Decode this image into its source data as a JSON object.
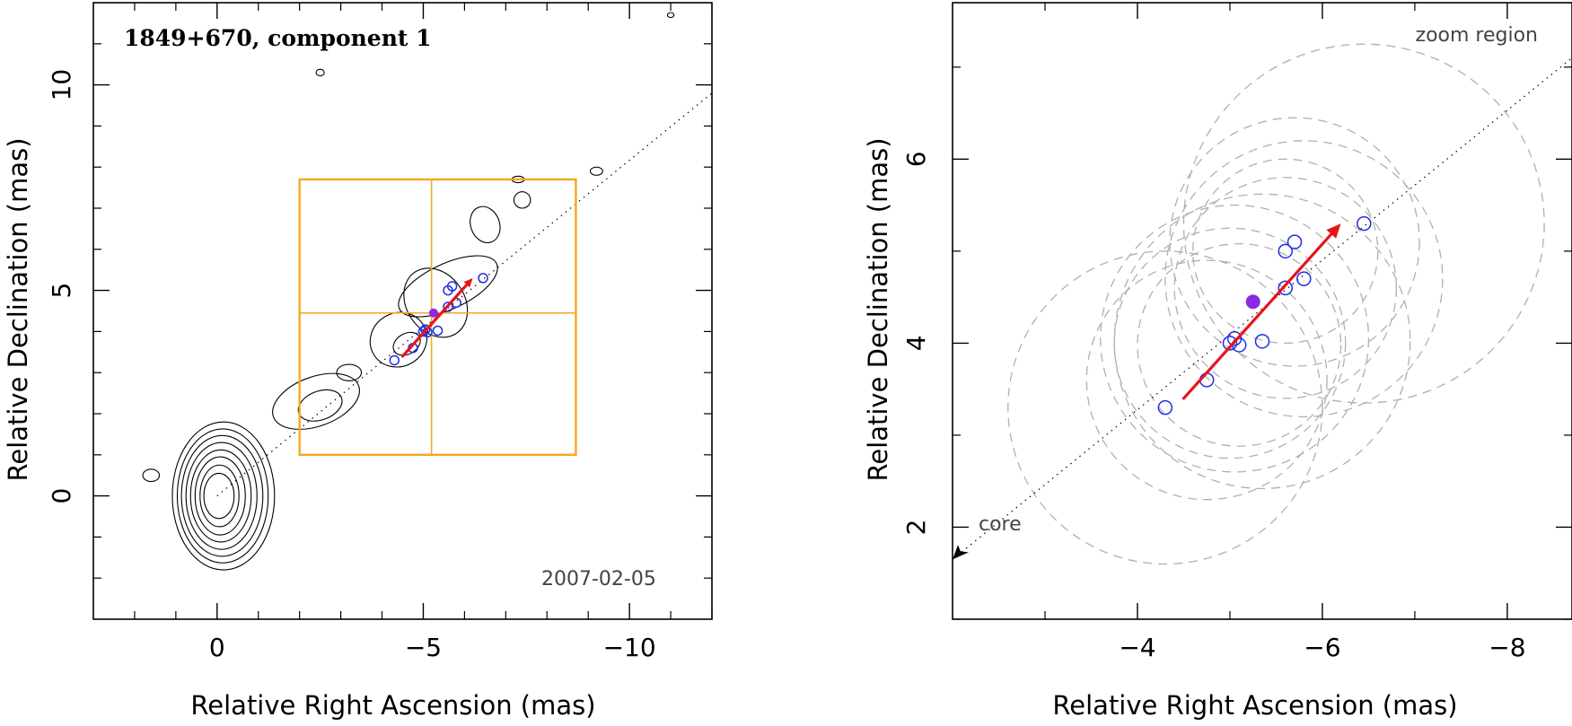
{
  "chart_data": [
    {
      "type": "scatter",
      "name": "left-panel",
      "title": "1849+670, component 1",
      "date": "2007-02-05",
      "xlabel": "Relative Right Ascension (mas)",
      "ylabel": "Relative Declination (mas)",
      "xlim": [
        3,
        -12
      ],
      "ylim": [
        -3,
        12
      ],
      "xticks": [
        0,
        -5,
        -10
      ],
      "xtick_labels": [
        "0",
        "−5",
        "−10"
      ],
      "yticks": [
        0,
        5,
        10
      ],
      "ytick_labels": [
        "0",
        "5",
        "10"
      ],
      "zoom_box": {
        "x": [
          -2,
          -8.7
        ],
        "y": [
          1,
          7.7
        ],
        "cross_x": -5.2,
        "cross_y": 4.45
      },
      "core": [
        0,
        0
      ],
      "contour_radii": [
        [
          0.35,
          0.55
        ],
        [
          0.45,
          0.75
        ],
        [
          0.58,
          0.95
        ],
        [
          0.7,
          1.12
        ],
        [
          0.82,
          1.3
        ],
        [
          0.94,
          1.47
        ],
        [
          1.05,
          1.63
        ],
        [
          1.18,
          1.8
        ]
      ],
      "contour_blobs": [
        {
          "cx": -2.4,
          "cy": 2.3,
          "rx": 1.1,
          "ry": 0.6,
          "rot": -20
        },
        {
          "cx": -2.5,
          "cy": 2.2,
          "rx": 0.55,
          "ry": 0.35,
          "rot": -20
        },
        {
          "cx": -3.2,
          "cy": 3.0,
          "rx": 0.3,
          "ry": 0.2,
          "rot": 0
        },
        {
          "cx": -4.4,
          "cy": 3.8,
          "rx": 0.7,
          "ry": 0.65,
          "rot": -30
        },
        {
          "cx": -4.6,
          "cy": 3.7,
          "rx": 0.35,
          "ry": 0.25,
          "rot": -30
        },
        {
          "cx": -5.3,
          "cy": 4.7,
          "rx": 0.7,
          "ry": 0.9,
          "rot": -35
        },
        {
          "cx": -5.6,
          "cy": 5.1,
          "rx": 1.3,
          "ry": 0.55,
          "rot": -25
        },
        {
          "cx": -6.5,
          "cy": 6.6,
          "rx": 0.35,
          "ry": 0.45,
          "rot": -20
        },
        {
          "cx": -7.4,
          "cy": 7.2,
          "rx": 0.2,
          "ry": 0.2,
          "rot": 0
        },
        {
          "cx": -2.5,
          "cy": 10.3,
          "rx": 0.1,
          "ry": 0.08,
          "rot": 0
        },
        {
          "cx": -11.0,
          "cy": 11.7,
          "rx": 0.08,
          "ry": 0.06,
          "rot": 0
        },
        {
          "cx": -9.2,
          "cy": 7.9,
          "rx": 0.15,
          "ry": 0.1,
          "rot": 0
        },
        {
          "cx": -7.3,
          "cy": 7.7,
          "rx": 0.15,
          "ry": 0.08,
          "rot": 0
        },
        {
          "cx": 1.6,
          "cy": 0.5,
          "rx": 0.2,
          "ry": 0.15,
          "rot": 0
        }
      ],
      "component_points": [
        [
          -4.3,
          3.3
        ],
        [
          -4.75,
          3.6
        ],
        [
          -5.0,
          4.0
        ],
        [
          -5.05,
          4.05
        ],
        [
          -5.1,
          3.98
        ],
        [
          -5.35,
          4.02
        ],
        [
          -5.6,
          4.6
        ],
        [
          -5.6,
          5.0
        ],
        [
          -5.7,
          5.1
        ],
        [
          -5.8,
          4.7
        ],
        [
          -6.45,
          5.3
        ]
      ],
      "mean_position": [
        -5.25,
        4.45
      ],
      "vector": {
        "from": [
          -4.5,
          3.4
        ],
        "to": [
          -6.2,
          5.3
        ]
      },
      "jet_axis": {
        "from": [
          0,
          0
        ],
        "to": [
          -12,
          9.8
        ]
      }
    },
    {
      "type": "scatter",
      "name": "right-panel",
      "title": "zoom region",
      "core_label": "core",
      "xlabel": "Relative Right Ascension (mas)",
      "ylabel": "Relative Declination (mas)",
      "xlim": [
        -2,
        -8.7
      ],
      "ylim": [
        1,
        7.7
      ],
      "xticks": [
        -4,
        -6,
        -8
      ],
      "xtick_labels": [
        "−4",
        "−6",
        "−8"
      ],
      "yticks": [
        2,
        4,
        6
      ],
      "ytick_labels": [
        "2",
        "4",
        "6"
      ],
      "component_points": [
        [
          -4.3,
          3.3
        ],
        [
          -4.75,
          3.6
        ],
        [
          -5.0,
          4.0
        ],
        [
          -5.05,
          4.05
        ],
        [
          -5.1,
          3.98
        ],
        [
          -5.35,
          4.02
        ],
        [
          -5.6,
          4.6
        ],
        [
          -5.6,
          5.0
        ],
        [
          -5.7,
          5.1
        ],
        [
          -5.8,
          4.7
        ],
        [
          -6.45,
          5.3
        ]
      ],
      "mean_position": [
        -5.25,
        4.45
      ],
      "vector": {
        "from": [
          -4.5,
          3.4
        ],
        "to": [
          -6.2,
          5.3
        ]
      },
      "jet_axis": {
        "from": [
          -2.0,
          1.65
        ],
        "to": [
          -8.7,
          7.1
        ]
      },
      "core_arrow_tip": [
        -2.0,
        1.65
      ],
      "error_circles": [
        {
          "cx": -4.3,
          "cy": 3.3,
          "r": 1.7
        },
        {
          "cx": -4.75,
          "cy": 3.6,
          "r": 1.3
        },
        {
          "cx": -5.0,
          "cy": 4.0,
          "r": 1.25
        },
        {
          "cx": -5.05,
          "cy": 4.05,
          "r": 1.45
        },
        {
          "cx": -5.1,
          "cy": 3.98,
          "r": 1.1
        },
        {
          "cx": -5.35,
          "cy": 4.02,
          "r": 1.6
        },
        {
          "cx": -5.6,
          "cy": 4.6,
          "r": 1.2
        },
        {
          "cx": -5.6,
          "cy": 5.0,
          "r": 1.0
        },
        {
          "cx": -5.7,
          "cy": 5.1,
          "r": 1.35
        },
        {
          "cx": -5.8,
          "cy": 4.7,
          "r": 1.5
        },
        {
          "cx": -6.45,
          "cy": 5.3,
          "r": 1.95
        }
      ]
    }
  ],
  "colors": {
    "axis": "#000000",
    "contour": "#000000",
    "zoom_box": "#f5a623",
    "vector": "#e8141b",
    "component": "#1f2fe0",
    "mean": "#8a2be2",
    "error_circle": "#b0b0b0",
    "jet_axis": "#000000"
  }
}
